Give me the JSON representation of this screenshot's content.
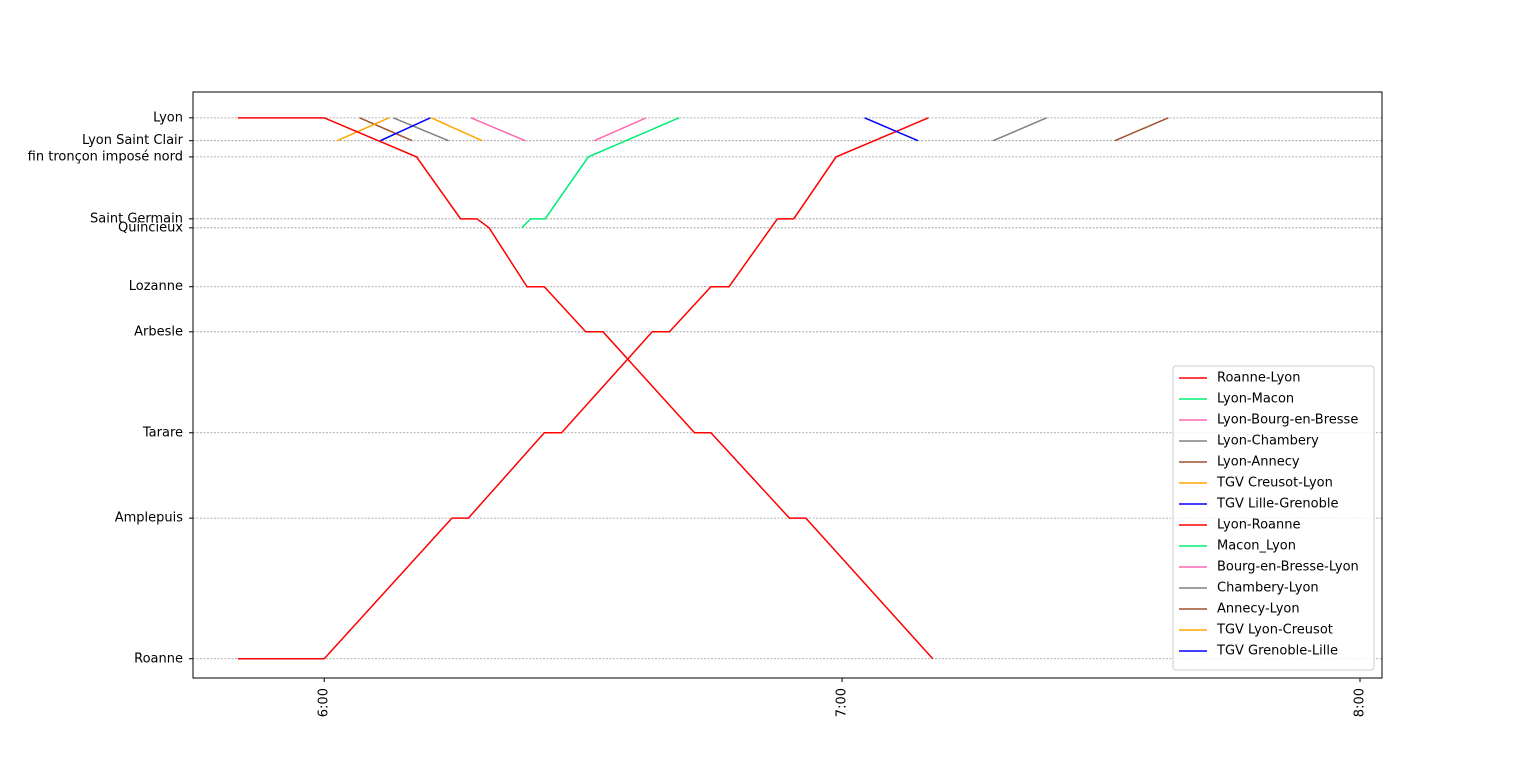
{
  "chart_data": {
    "type": "line",
    "xlim": [
      344.8,
      482.55
    ],
    "xticks": [
      {
        "value": 360,
        "label": "6:00"
      },
      {
        "value": 420,
        "label": "7:00"
      },
      {
        "value": 480,
        "label": "8:00"
      }
    ],
    "ylim": [
      93.2,
      -4.3
    ],
    "yticks": [
      {
        "value": 0,
        "label": "Lyon"
      },
      {
        "value": 3.8,
        "label": "Lyon Saint Clair"
      },
      {
        "value": 6.5,
        "label": "fin tronçon imposé nord"
      },
      {
        "value": 16.8,
        "label": "Saint Germain"
      },
      {
        "value": 18.3,
        "label": "Quincieux"
      },
      {
        "value": 28.1,
        "label": "Lozanne"
      },
      {
        "value": 35.6,
        "label": "Arbesle"
      },
      {
        "value": 52.4,
        "label": "Tarare"
      },
      {
        "value": 66.6,
        "label": "Amplepuis"
      },
      {
        "value": 90,
        "label": "Roanne"
      }
    ],
    "grid": true,
    "legend": "lower right",
    "series": [
      {
        "name": "Roanne-Lyon",
        "color": "#ff0000",
        "x": [
          350.0,
          360,
          374.8,
          376.7,
          385.5,
          387.5,
          398.0,
          400.0,
          404.8,
          406.9,
          412.5,
          414.4,
          419.3,
          430.0
        ],
        "values": [
          90,
          90,
          66.6,
          66.6,
          52.4,
          52.4,
          35.6,
          35.6,
          28.1,
          28.1,
          16.8,
          16.8,
          6.5,
          0
        ]
      },
      {
        "name": "Lyon-Macon",
        "color": "#00ee76",
        "x": [],
        "values": []
      },
      {
        "name": "Lyon-Bourg-en-Bresse",
        "color": "#ff69b4",
        "x": [
          377.0,
          383.3
        ],
        "values": [
          0,
          3.8
        ]
      },
      {
        "name": "Lyon-Chambery",
        "color": "#808080",
        "x": [
          368.0,
          374.4
        ],
        "values": [
          0,
          3.8
        ]
      },
      {
        "name": "Lyon-Annecy",
        "color": "#a0522d",
        "x": [
          364.1,
          370.2
        ],
        "values": [
          0,
          3.8
        ]
      },
      {
        "name": "TGV Creusot-Lyon",
        "color": "#ffa500",
        "x": [
          361.5,
          367.5
        ],
        "values": [
          3.8,
          0
        ]
      },
      {
        "name": "TGV Lille-Grenoble",
        "color": "#0000ff",
        "x": [
          366.5,
          372.3
        ],
        "values": [
          3.8,
          0
        ]
      },
      {
        "name": "Lyon-Roanne",
        "color": "#ff0000",
        "x": [
          350,
          360,
          370.7,
          375.8,
          377.7,
          379.1,
          383.5,
          385.5,
          390.3,
          392.3,
          402.9,
          404.8,
          413.9,
          415.8,
          430.5
        ],
        "values": [
          0,
          0,
          6.5,
          16.8,
          16.8,
          18.3,
          28.1,
          28.1,
          35.6,
          35.6,
          52.4,
          52.4,
          66.6,
          66.6,
          90
        ]
      },
      {
        "name": "Macon_Lyon",
        "color": "#00ee76",
        "x": [
          382.9,
          383.9,
          385.6,
          390.6,
          401.1
        ],
        "values": [
          18.3,
          16.8,
          16.8,
          6.5,
          0
        ]
      },
      {
        "name": "Bourg-en-Bresse-Lyon",
        "color": "#ff69b4",
        "x": [
          391.3,
          397.3
        ],
        "values": [
          3.8,
          0
        ]
      },
      {
        "name": "Chambery-Lyon",
        "color": "#808080",
        "x": [
          437.5,
          443.7
        ],
        "values": [
          3.8,
          0
        ]
      },
      {
        "name": "Annecy-Lyon",
        "color": "#a0522d",
        "x": [
          451.6,
          457.8
        ],
        "values": [
          3.8,
          0
        ]
      },
      {
        "name": "TGV Lyon-Creusot",
        "color": "#ffa500",
        "x": [
          372.4,
          378.3
        ],
        "values": [
          0,
          3.8
        ]
      },
      {
        "name": "TGV Grenoble-Lille",
        "color": "#0000ff",
        "x": [
          422.6,
          428.8
        ],
        "values": [
          0,
          3.8
        ]
      }
    ]
  }
}
